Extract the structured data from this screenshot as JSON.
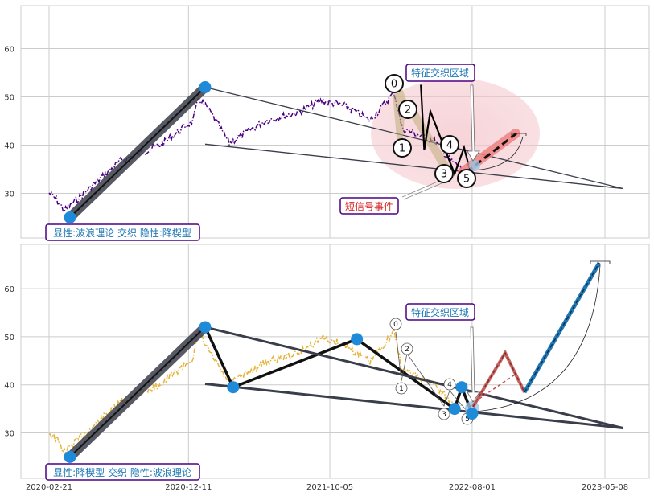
{
  "chart_data": [
    {
      "type": "line",
      "panel": "top",
      "ylim": [
        20,
        70
      ],
      "yticks": [
        "30",
        "40",
        "50",
        "60"
      ],
      "xticks": [
        "2020-02-21",
        "2020-12-11",
        "2021-10-05",
        "2022-08-01",
        "2023-05-08"
      ],
      "grid": true,
      "series": [
        {
          "role": "price",
          "color": "#4b0082",
          "style": "dashdot"
        },
        {
          "role": "impulse_line",
          "color": "#3a3d4a",
          "points": [
            [
              "2020-04-05",
              25
            ],
            [
              "2021-01-15",
              52
            ]
          ]
        },
        {
          "role": "trend_upper",
          "color": "#3a3d4a",
          "points": [
            [
              "2021-01-15",
              52
            ],
            [
              "2023-06-15",
              31
            ]
          ]
        },
        {
          "role": "trend_lower",
          "color": "#3a3d4a",
          "points": [
            [
              "2021-01-15",
              40.2
            ],
            [
              "2023-06-15",
              31
            ]
          ]
        },
        {
          "role": "wave_path",
          "color": "#000000",
          "points": [
            [
              "2022-04-15",
              52.5
            ],
            [
              "2022-04-22",
              39
            ],
            [
              "2022-05-05",
              47
            ],
            [
              "2022-06-25",
              34
            ],
            [
              "2022-07-15",
              39.5
            ],
            [
              "2022-08-01",
              33
            ]
          ]
        },
        {
          "role": "forecast",
          "color": "#f08080",
          "points": [
            [
              "2022-08-05",
              34
            ],
            [
              "2022-11-10",
              42
            ]
          ]
        }
      ],
      "wave_labels": [
        "0",
        "1",
        "2",
        "3",
        "4",
        "5"
      ],
      "pivots": [
        [
          "2020-04-05",
          25
        ],
        [
          "2021-01-15",
          52
        ]
      ],
      "annotations": [
        {
          "text": "特征交织区域",
          "color": "#1f77b4",
          "border": "#4b0082"
        },
        {
          "text": "短信号事件",
          "color": "#d62728",
          "border": "#4b0082"
        },
        {
          "text": "显性:波浪理论 交织 隐性:降楔型",
          "color": "#1f77b4",
          "border": "#4b0082"
        }
      ],
      "highlight_zone": {
        "color": "#f4c6cc"
      }
    },
    {
      "type": "line",
      "panel": "bottom",
      "ylim": [
        20,
        69
      ],
      "yticks": [
        "30",
        "40",
        "50",
        "60"
      ],
      "xticks": [
        "2020-02-21",
        "2020-12-11",
        "2021-10-05",
        "2022-08-01",
        "2023-05-08"
      ],
      "grid": true,
      "series": [
        {
          "role": "price",
          "color": "#e6b43c",
          "style": "dashdot"
        },
        {
          "role": "impulse_line",
          "color": "#3a3d4a",
          "points": [
            [
              "2020-04-05",
              25
            ],
            [
              "2021-01-15",
              52
            ]
          ]
        },
        {
          "role": "wedge_path",
          "color": "#111111",
          "points": [
            [
              "2021-01-15",
              52
            ],
            [
              "2021-03-15",
              39.5
            ],
            [
              "2021-12-01",
              49.5
            ],
            [
              "2022-06-25",
              35
            ],
            [
              "2022-07-10",
              39.5
            ],
            [
              "2022-08-01",
              34
            ]
          ]
        },
        {
          "role": "trend_upper",
          "color": "#3a3d4a",
          "points": [
            [
              "2021-01-15",
              52
            ],
            [
              "2023-06-15",
              31
            ]
          ]
        },
        {
          "role": "trend_lower",
          "color": "#3a3d4a",
          "points": [
            [
              "2021-01-15",
              40.2
            ],
            [
              "2023-06-15",
              31
            ]
          ]
        },
        {
          "role": "forecast_zigzag",
          "color": "#c0504d",
          "points": [
            [
              "2022-08-05",
              34
            ],
            [
              "2022-10-15",
              46.5
            ],
            [
              "2022-12-20",
              38.5
            ]
          ]
        },
        {
          "role": "forecast_target",
          "color": "#1f77b4",
          "points": [
            [
              "2022-12-20",
              38.5
            ],
            [
              "2023-04-30",
              65.5
            ]
          ]
        }
      ],
      "wave_labels": [
        "0",
        "1",
        "2",
        "3",
        "4",
        "5"
      ],
      "pivots": [
        [
          "2020-04-05",
          25
        ],
        [
          "2021-01-15",
          52
        ],
        [
          "2021-03-15",
          39.5
        ],
        [
          "2021-12-01",
          49.5
        ],
        [
          "2022-06-25",
          35
        ],
        [
          "2022-07-10",
          39.5
        ],
        [
          "2022-08-01",
          34
        ]
      ],
      "annotations": [
        {
          "text": "特征交织区域",
          "color": "#1f77b4",
          "border": "#4b0082"
        },
        {
          "text": "显性:降楔型 交织 隐性:波浪理论",
          "color": "#1f77b4",
          "border": "#4b0082"
        }
      ]
    }
  ]
}
